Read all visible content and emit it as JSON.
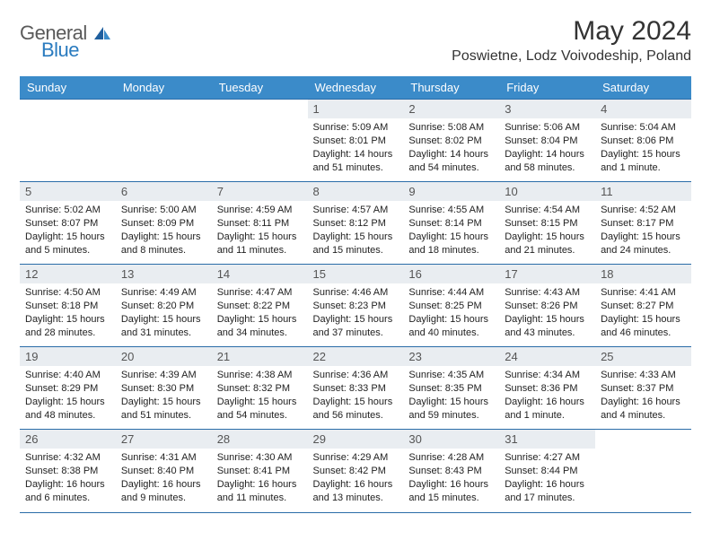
{
  "brand": {
    "word1": "General",
    "word2": "Blue",
    "text_color": "#5a5a5a",
    "accent_color": "#2a7bbf"
  },
  "title": "May 2024",
  "location": "Poswietne, Lodz Voivodeship, Poland",
  "colors": {
    "header_bg": "#3b8bc9",
    "header_fg": "#ffffff",
    "rule": "#2a6ca8",
    "daynum_bg": "#e9edf1",
    "daynum_fg": "#555555",
    "page_bg": "#ffffff",
    "body_text": "#222222"
  },
  "day_headers": [
    "Sunday",
    "Monday",
    "Tuesday",
    "Wednesday",
    "Thursday",
    "Friday",
    "Saturday"
  ],
  "weeks": [
    [
      null,
      null,
      null,
      {
        "n": "1",
        "sunrise": "Sunrise: 5:09 AM",
        "sunset": "Sunset: 8:01 PM",
        "day1": "Daylight: 14 hours",
        "day2": "and 51 minutes."
      },
      {
        "n": "2",
        "sunrise": "Sunrise: 5:08 AM",
        "sunset": "Sunset: 8:02 PM",
        "day1": "Daylight: 14 hours",
        "day2": "and 54 minutes."
      },
      {
        "n": "3",
        "sunrise": "Sunrise: 5:06 AM",
        "sunset": "Sunset: 8:04 PM",
        "day1": "Daylight: 14 hours",
        "day2": "and 58 minutes."
      },
      {
        "n": "4",
        "sunrise": "Sunrise: 5:04 AM",
        "sunset": "Sunset: 8:06 PM",
        "day1": "Daylight: 15 hours",
        "day2": "and 1 minute."
      }
    ],
    [
      {
        "n": "5",
        "sunrise": "Sunrise: 5:02 AM",
        "sunset": "Sunset: 8:07 PM",
        "day1": "Daylight: 15 hours",
        "day2": "and 5 minutes."
      },
      {
        "n": "6",
        "sunrise": "Sunrise: 5:00 AM",
        "sunset": "Sunset: 8:09 PM",
        "day1": "Daylight: 15 hours",
        "day2": "and 8 minutes."
      },
      {
        "n": "7",
        "sunrise": "Sunrise: 4:59 AM",
        "sunset": "Sunset: 8:11 PM",
        "day1": "Daylight: 15 hours",
        "day2": "and 11 minutes."
      },
      {
        "n": "8",
        "sunrise": "Sunrise: 4:57 AM",
        "sunset": "Sunset: 8:12 PM",
        "day1": "Daylight: 15 hours",
        "day2": "and 15 minutes."
      },
      {
        "n": "9",
        "sunrise": "Sunrise: 4:55 AM",
        "sunset": "Sunset: 8:14 PM",
        "day1": "Daylight: 15 hours",
        "day2": "and 18 minutes."
      },
      {
        "n": "10",
        "sunrise": "Sunrise: 4:54 AM",
        "sunset": "Sunset: 8:15 PM",
        "day1": "Daylight: 15 hours",
        "day2": "and 21 minutes."
      },
      {
        "n": "11",
        "sunrise": "Sunrise: 4:52 AM",
        "sunset": "Sunset: 8:17 PM",
        "day1": "Daylight: 15 hours",
        "day2": "and 24 minutes."
      }
    ],
    [
      {
        "n": "12",
        "sunrise": "Sunrise: 4:50 AM",
        "sunset": "Sunset: 8:18 PM",
        "day1": "Daylight: 15 hours",
        "day2": "and 28 minutes."
      },
      {
        "n": "13",
        "sunrise": "Sunrise: 4:49 AM",
        "sunset": "Sunset: 8:20 PM",
        "day1": "Daylight: 15 hours",
        "day2": "and 31 minutes."
      },
      {
        "n": "14",
        "sunrise": "Sunrise: 4:47 AM",
        "sunset": "Sunset: 8:22 PM",
        "day1": "Daylight: 15 hours",
        "day2": "and 34 minutes."
      },
      {
        "n": "15",
        "sunrise": "Sunrise: 4:46 AM",
        "sunset": "Sunset: 8:23 PM",
        "day1": "Daylight: 15 hours",
        "day2": "and 37 minutes."
      },
      {
        "n": "16",
        "sunrise": "Sunrise: 4:44 AM",
        "sunset": "Sunset: 8:25 PM",
        "day1": "Daylight: 15 hours",
        "day2": "and 40 minutes."
      },
      {
        "n": "17",
        "sunrise": "Sunrise: 4:43 AM",
        "sunset": "Sunset: 8:26 PM",
        "day1": "Daylight: 15 hours",
        "day2": "and 43 minutes."
      },
      {
        "n": "18",
        "sunrise": "Sunrise: 4:41 AM",
        "sunset": "Sunset: 8:27 PM",
        "day1": "Daylight: 15 hours",
        "day2": "and 46 minutes."
      }
    ],
    [
      {
        "n": "19",
        "sunrise": "Sunrise: 4:40 AM",
        "sunset": "Sunset: 8:29 PM",
        "day1": "Daylight: 15 hours",
        "day2": "and 48 minutes."
      },
      {
        "n": "20",
        "sunrise": "Sunrise: 4:39 AM",
        "sunset": "Sunset: 8:30 PM",
        "day1": "Daylight: 15 hours",
        "day2": "and 51 minutes."
      },
      {
        "n": "21",
        "sunrise": "Sunrise: 4:38 AM",
        "sunset": "Sunset: 8:32 PM",
        "day1": "Daylight: 15 hours",
        "day2": "and 54 minutes."
      },
      {
        "n": "22",
        "sunrise": "Sunrise: 4:36 AM",
        "sunset": "Sunset: 8:33 PM",
        "day1": "Daylight: 15 hours",
        "day2": "and 56 minutes."
      },
      {
        "n": "23",
        "sunrise": "Sunrise: 4:35 AM",
        "sunset": "Sunset: 8:35 PM",
        "day1": "Daylight: 15 hours",
        "day2": "and 59 minutes."
      },
      {
        "n": "24",
        "sunrise": "Sunrise: 4:34 AM",
        "sunset": "Sunset: 8:36 PM",
        "day1": "Daylight: 16 hours",
        "day2": "and 1 minute."
      },
      {
        "n": "25",
        "sunrise": "Sunrise: 4:33 AM",
        "sunset": "Sunset: 8:37 PM",
        "day1": "Daylight: 16 hours",
        "day2": "and 4 minutes."
      }
    ],
    [
      {
        "n": "26",
        "sunrise": "Sunrise: 4:32 AM",
        "sunset": "Sunset: 8:38 PM",
        "day1": "Daylight: 16 hours",
        "day2": "and 6 minutes."
      },
      {
        "n": "27",
        "sunrise": "Sunrise: 4:31 AM",
        "sunset": "Sunset: 8:40 PM",
        "day1": "Daylight: 16 hours",
        "day2": "and 9 minutes."
      },
      {
        "n": "28",
        "sunrise": "Sunrise: 4:30 AM",
        "sunset": "Sunset: 8:41 PM",
        "day1": "Daylight: 16 hours",
        "day2": "and 11 minutes."
      },
      {
        "n": "29",
        "sunrise": "Sunrise: 4:29 AM",
        "sunset": "Sunset: 8:42 PM",
        "day1": "Daylight: 16 hours",
        "day2": "and 13 minutes."
      },
      {
        "n": "30",
        "sunrise": "Sunrise: 4:28 AM",
        "sunset": "Sunset: 8:43 PM",
        "day1": "Daylight: 16 hours",
        "day2": "and 15 minutes."
      },
      {
        "n": "31",
        "sunrise": "Sunrise: 4:27 AM",
        "sunset": "Sunset: 8:44 PM",
        "day1": "Daylight: 16 hours",
        "day2": "and 17 minutes."
      },
      null
    ]
  ]
}
